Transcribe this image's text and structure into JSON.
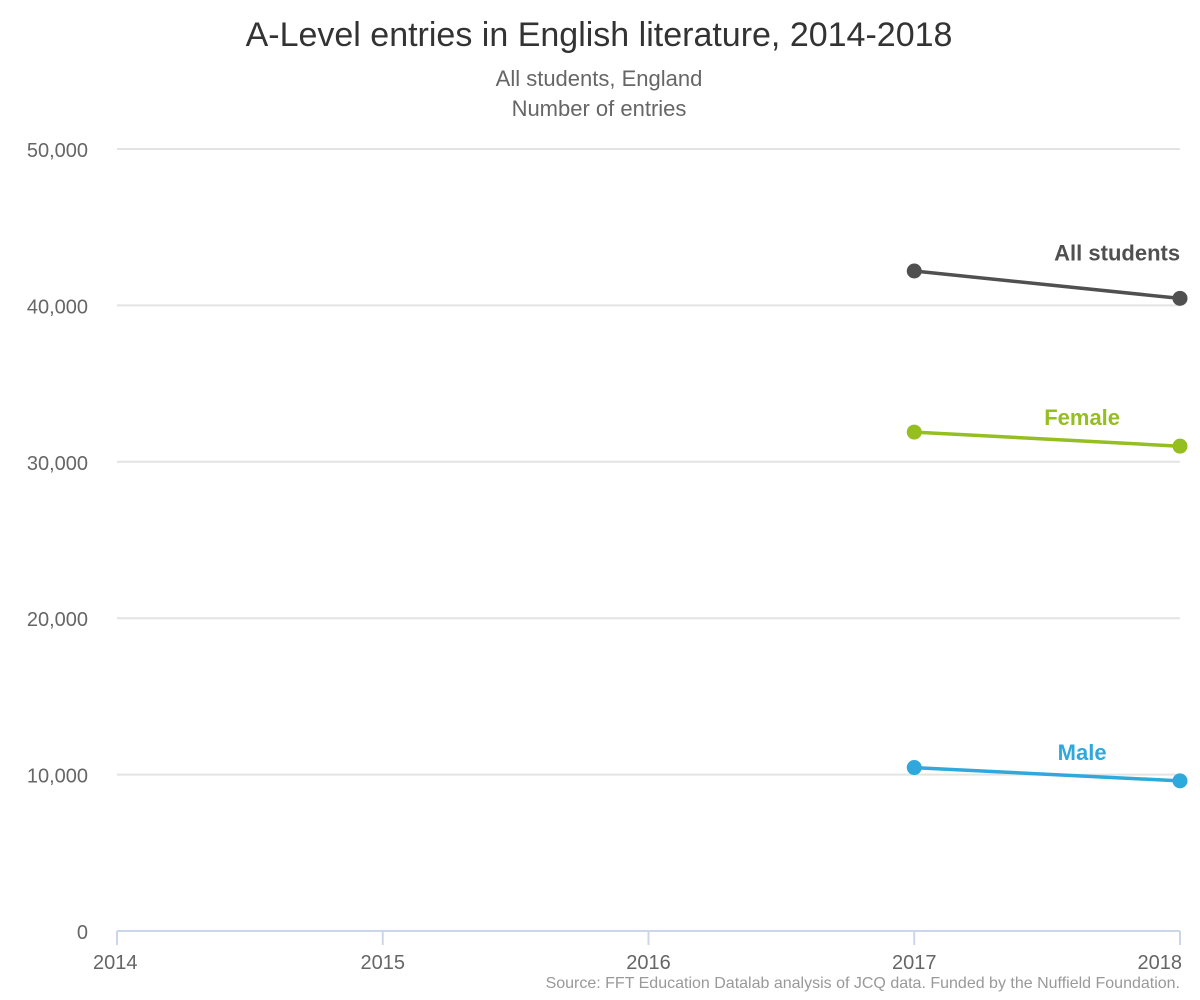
{
  "chart_data": {
    "type": "line",
    "title": "A-Level entries in English literature, 2014-2018",
    "subtitle_lines": [
      "All students, England",
      "Number of entries"
    ],
    "credit": "Source: FFT Education Datalab analysis of JCQ data. Funded by the Nuffield Foundation.",
    "x": [
      2017,
      2018
    ],
    "x_ticks": [
      "2014",
      "2015",
      "2016",
      "2017",
      "2018"
    ],
    "xlim": [
      2014,
      2018
    ],
    "y_ticks": [
      "0",
      "10,000",
      "20,000",
      "30,000",
      "40,000",
      "50,000"
    ],
    "ylim": [
      0,
      50000
    ],
    "grid": true,
    "series": [
      {
        "name": "All students",
        "color": "#505050",
        "values": [
          42200,
          40450
        ]
      },
      {
        "name": "Female",
        "color": "#95be21",
        "values": [
          31900,
          31000
        ]
      },
      {
        "name": "Male",
        "color": "#30a8dc",
        "values": [
          10450,
          9600
        ]
      }
    ]
  }
}
